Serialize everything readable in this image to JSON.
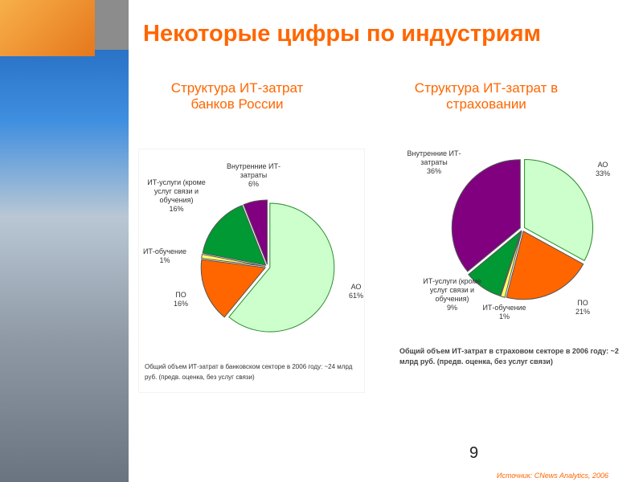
{
  "slide_title": "Некоторые цифры по индустриям",
  "page_number": "9",
  "source": "Источник: CNews Analytics, 2006",
  "chart_data": [
    {
      "type": "pie",
      "title": "Структура ИТ-затрат банков России",
      "categories": [
        "АО",
        "ПО",
        "ИТ-обучение",
        "ИТ-услуги (кроме услуг связи и обучения)",
        "Внутренние ИТ-затраты"
      ],
      "values": [
        61,
        16,
        1,
        16,
        6
      ],
      "value_labels": [
        "61%",
        "16%",
        "1%",
        "16%",
        "6%"
      ],
      "colors": [
        "#ccffcc",
        "#ff6600",
        "#ffff66",
        "#009933",
        "#800080"
      ],
      "note": "Общий объем ИТ-затрат в банковском секторе в 2006 году: ~24 млрд руб. (предв. оценка, без услуг связи)"
    },
    {
      "type": "pie",
      "title": "Структура ИТ-затрат в страховании",
      "categories": [
        "АО",
        "ПО",
        "ИТ-обучение",
        "ИТ-услуги (кроме услуг связи и обучения)",
        "Внутренние ИТ-затраты"
      ],
      "values": [
        33,
        21,
        1,
        9,
        36
      ],
      "value_labels": [
        "33%",
        "21%",
        "1%",
        "9%",
        "36%"
      ],
      "colors": [
        "#ccffcc",
        "#ff6600",
        "#ffff66",
        "#009933",
        "#800080"
      ],
      "note": "Общий объем ИТ-затрат в страховом секторе в 2006 году: ~2 млрд руб. (предв. оценка, без услуг связи)"
    }
  ]
}
